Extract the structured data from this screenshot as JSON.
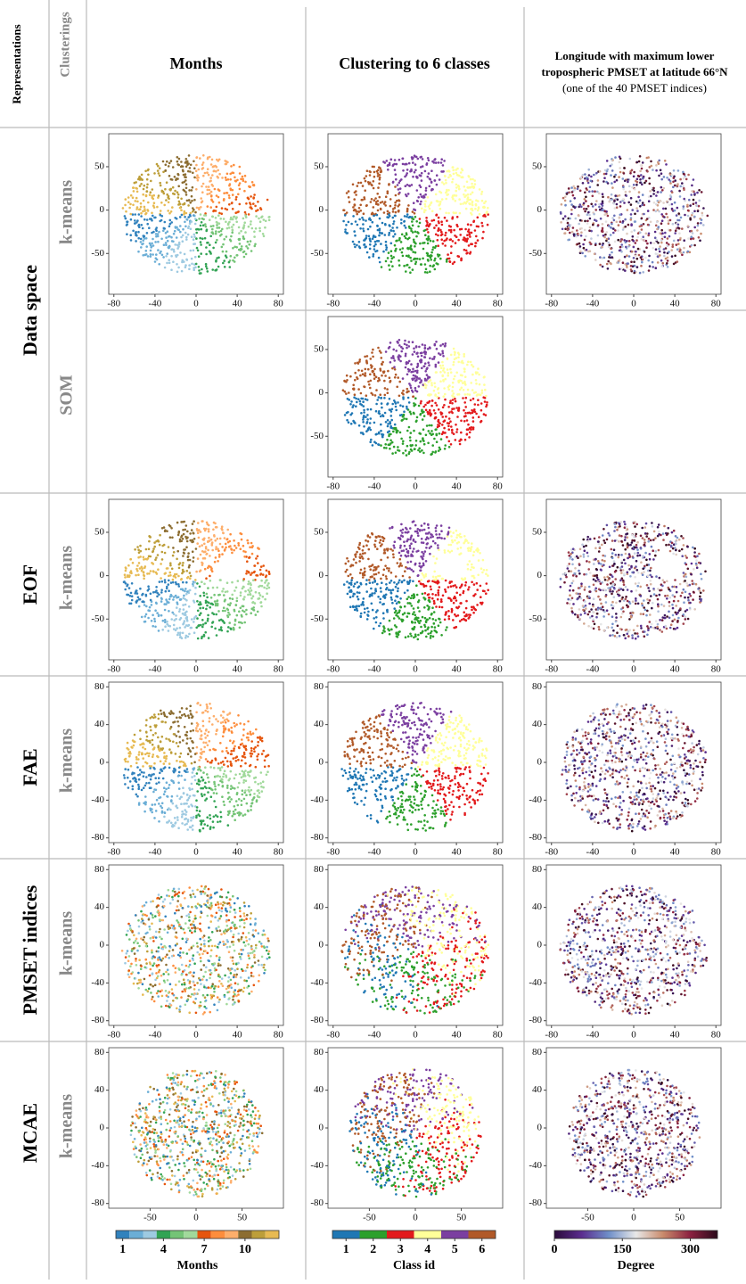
{
  "header": {
    "representations": "Representations",
    "clusterings": "Clusterings",
    "columns": [
      {
        "lines": [
          "Months"
        ]
      },
      {
        "lines": [
          "Clustering to 6 classes"
        ]
      },
      {
        "lines": [
          "Longitude with maximum lower",
          "tropospheric PMSET at latitude 66°N",
          "(one of the 40 PMSET indices)"
        ]
      }
    ]
  },
  "representations": [
    {
      "name": "Data space",
      "clusterings": [
        {
          "name": "k-means",
          "columns_shown": [
            0,
            1,
            2
          ],
          "xlim": [
            -85,
            85
          ],
          "xticks": [
            -80,
            -40,
            0,
            40,
            80
          ],
          "ylim": [
            -97,
            88
          ],
          "yticks": [
            -50,
            0,
            50
          ]
        },
        {
          "name": "SOM",
          "columns_shown": [
            1
          ],
          "xlim": [
            -85,
            85
          ],
          "xticks": [
            -80,
            -40,
            0,
            40,
            80
          ],
          "ylim": [
            -97,
            88
          ],
          "yticks": [
            -50,
            0,
            50
          ]
        }
      ]
    },
    {
      "name": "EOF",
      "clusterings": [
        {
          "name": "k-means",
          "columns_shown": [
            0,
            1,
            2
          ],
          "xlim": [
            -85,
            85
          ],
          "xticks": [
            -80,
            -40,
            0,
            40,
            80
          ],
          "ylim": [
            -97,
            88
          ],
          "yticks": [
            -50,
            0,
            50
          ]
        }
      ]
    },
    {
      "name": "FAE",
      "clusterings": [
        {
          "name": "k-means",
          "columns_shown": [
            0,
            1,
            2
          ],
          "xlim": [
            -85,
            85
          ],
          "xticks": [
            -80,
            -40,
            0,
            40,
            80
          ],
          "ylim": [
            -85,
            85
          ],
          "yticks": [
            -80,
            -40,
            0,
            40,
            80
          ]
        }
      ]
    },
    {
      "name": "PMSET indices",
      "clusterings": [
        {
          "name": "k-means",
          "columns_shown": [
            0,
            1,
            2
          ],
          "xlim": [
            -85,
            85
          ],
          "xticks": [
            -80,
            -40,
            0,
            40,
            80
          ],
          "ylim": [
            -85,
            85
          ],
          "yticks": [
            -80,
            -40,
            0,
            40,
            80
          ]
        }
      ]
    },
    {
      "name": "MCAE",
      "clusterings": [
        {
          "name": "k-means",
          "columns_shown": [
            0,
            1,
            2
          ],
          "xlim": [
            -95,
            95
          ],
          "xticks": [
            -50,
            0,
            50
          ],
          "ylim": [
            -85,
            85
          ],
          "yticks": [
            -80,
            -40,
            0,
            40,
            80
          ]
        }
      ]
    }
  ],
  "colorbars": [
    {
      "label": "Months",
      "lim": [
        0.5,
        12.5
      ],
      "ticks": [
        1,
        4,
        7,
        10
      ],
      "colors": [
        "#3182bd",
        "#6baed6",
        "#9ecae1",
        "#31a354",
        "#74c476",
        "#a1d99b",
        "#e6550d",
        "#fd8d3c",
        "#fdae6b",
        "#8c6d31",
        "#bd9e39",
        "#e7ba52"
      ]
    },
    {
      "label": "Class id",
      "lim": [
        0.5,
        6.5
      ],
      "ticks": [
        1,
        2,
        3,
        4,
        5,
        6
      ],
      "colors": [
        "#1f77b4",
        "#2ca02c",
        "#e31a1c",
        "#ffff99",
        "#7b3fa0",
        "#b15928"
      ]
    },
    {
      "label": "Degree",
      "lim": [
        0,
        360
      ],
      "ticks": [
        0,
        150,
        300
      ],
      "colors": [
        "#2a0a3a",
        "#5b2c8f",
        "#6f8fc9",
        "#e8e8e8",
        "#c98a6b",
        "#8b2040",
        "#2a0a1a"
      ]
    }
  ]
}
